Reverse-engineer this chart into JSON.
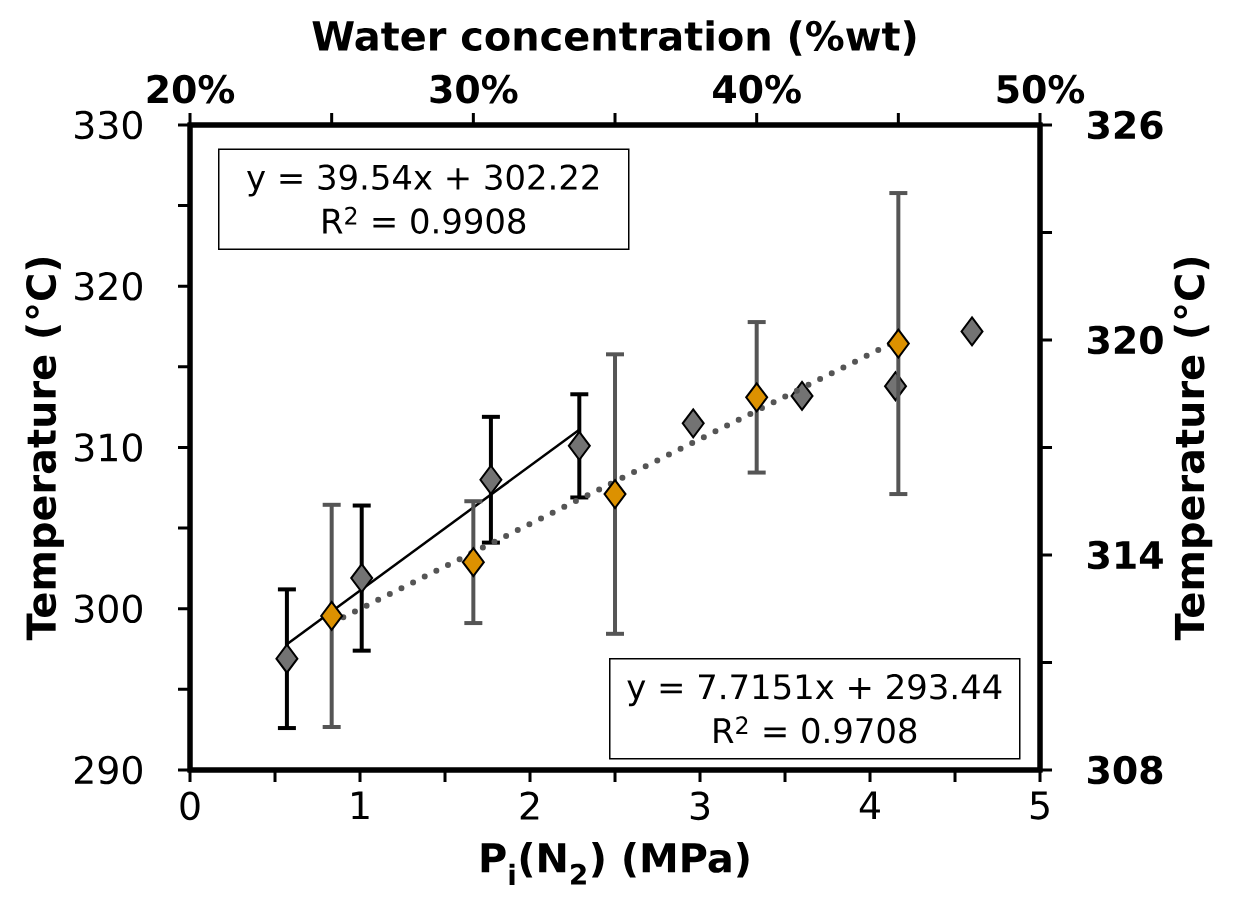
{
  "chart_data": [
    {
      "type": "scatter",
      "xlabel": "P$_{i}$(N$_{2}$) (MPa)",
      "ylabel": "Temperature (°C)",
      "xlim": [
        0,
        5
      ],
      "ylim": [
        290,
        330
      ],
      "xticks": [
        0,
        {
          "value": 0.5,
          "label": null
        },
        1,
        {
          "value": 1.5,
          "label": null
        },
        2,
        {
          "value": 2.5,
          "label": null
        },
        3,
        {
          "value": 3.5,
          "label": null
        },
        4,
        {
          "value": 4.5,
          "label": null
        },
        5
      ],
      "yticks": [
        290,
        {
          "value": 295,
          "label": null
        },
        300,
        {
          "value": 305,
          "label": null
        },
        310,
        {
          "value": 315,
          "label": null
        },
        320,
        {
          "value": 325,
          "label": null
        },
        330
      ],
      "marker": "diamond",
      "series": [
        {
          "color": "#737373",
          "x": [
            0.57,
            1.01,
            1.77,
            2.29,
            2.96,
            3.6,
            4.15,
            4.6
          ],
          "values": [
            296.9,
            301.9,
            308.0,
            310.1,
            311.5,
            313.2,
            313.8,
            317.2
          ],
          "errors": [
            4.3,
            4.5,
            3.9,
            3.2,
            null,
            null,
            null,
            null
          ]
        },
        {
          "type": "line",
          "color": "#000000",
          "line_style": "solid",
          "marker": "none",
          "x": [
            0.57,
            2.29
          ],
          "values": [
            297.8,
            311.1
          ]
        }
      ],
      "annotations": [
        "y = 7.7151x + 293.44",
        "R$^{2}$ = 0.9708"
      ]
    },
    {
      "type": "scatter",
      "xlabel": "Water concentration (%wt)",
      "ylabel": "Temperature (°C)",
      "xlim": [
        20,
        50
      ],
      "ylim": [
        308,
        326
      ],
      "xticks": [
        {
          "value": 20,
          "label": "20%"
        },
        {
          "value": 25,
          "label": null
        },
        {
          "value": 30,
          "label": "30%"
        },
        {
          "value": 35,
          "label": null
        },
        {
          "value": 40,
          "label": "40%"
        },
        {
          "value": 45,
          "label": null
        },
        {
          "value": 50,
          "label": "50%"
        }
      ],
      "yticks": [
        308,
        {
          "value": 311,
          "label": null
        },
        314,
        {
          "value": 317,
          "label": null
        },
        320,
        {
          "value": 323,
          "label": null
        },
        326
      ],
      "marker": "diamond",
      "series": [
        {
          "color": "#dc9100",
          "x": [
            25,
            30,
            35,
            40,
            45
          ],
          "values": [
            312.3,
            313.8,
            315.7,
            318.4,
            319.9
          ],
          "errors": [
            3.1,
            1.7,
            3.9,
            2.1,
            4.2
          ]
        },
        {
          "type": "line",
          "color": "#555555",
          "line_style": "dotted",
          "marker": "none",
          "x": [
            25,
            45
          ],
          "values": [
            312.1,
            320.0
          ]
        }
      ],
      "annotations": [
        "y = 39.54x + 302.22",
        "R$^{2}$ = 0.9908"
      ]
    }
  ]
}
